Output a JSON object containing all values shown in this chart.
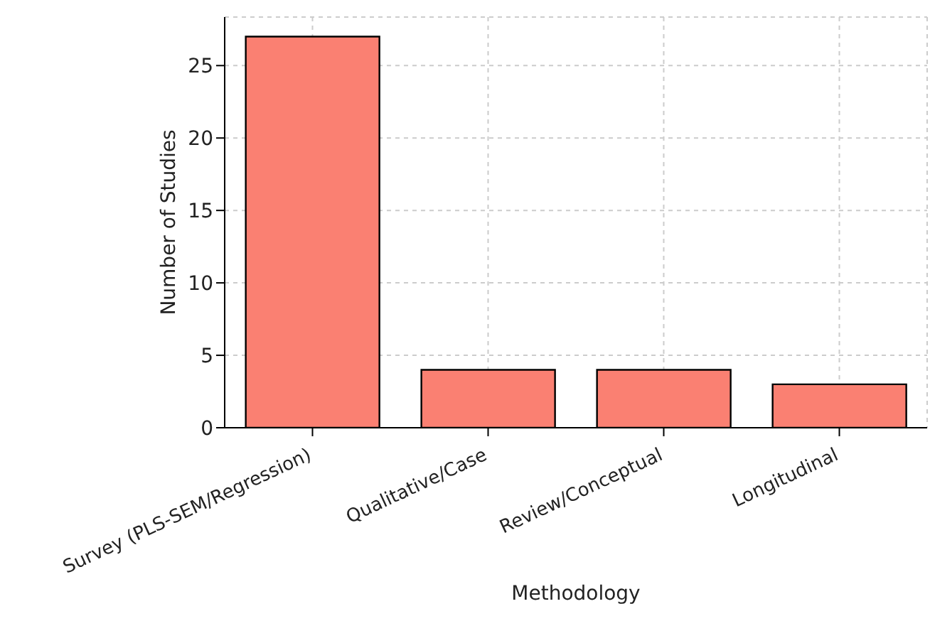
{
  "chart_data": {
    "type": "bar",
    "xlabel": "Methodology",
    "ylabel": "Number of Studies",
    "categories": [
      "Survey (PLS-SEM/Regression)",
      "Qualitative/Case",
      "Review/Conceptual",
      "Longitudinal"
    ],
    "values": [
      27,
      4,
      4,
      3
    ],
    "color": "#fa8072",
    "ylim": [
      0,
      28.35
    ],
    "yticks": [
      0,
      5,
      10,
      15,
      20,
      25
    ],
    "grid": true
  }
}
